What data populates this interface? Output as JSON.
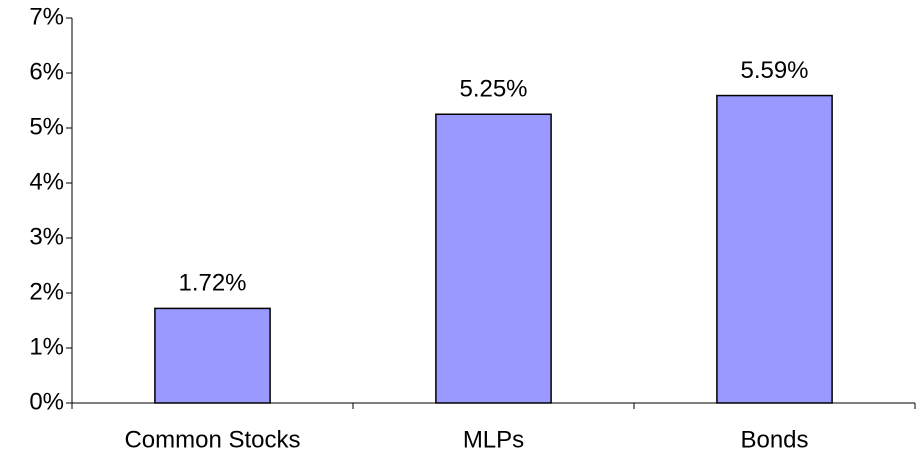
{
  "chart_data": {
    "type": "bar",
    "categories": [
      "Common Stocks",
      "MLPs",
      "Bonds"
    ],
    "values": [
      1.72,
      5.25,
      5.59
    ],
    "value_labels": [
      "1.72%",
      "5.25%",
      "5.59%"
    ],
    "color": "#9999ff",
    "ylim": [
      0,
      7
    ],
    "yticks": [
      {
        "value": 0,
        "label": "0%"
      },
      {
        "value": 1,
        "label": "1%"
      },
      {
        "value": 2,
        "label": "2%"
      },
      {
        "value": 3,
        "label": "3%"
      },
      {
        "value": 4,
        "label": "4%"
      },
      {
        "value": 5,
        "label": "5%"
      },
      {
        "value": 6,
        "label": "6%"
      },
      {
        "value": 7,
        "label": "7%"
      }
    ],
    "grid": false
  }
}
